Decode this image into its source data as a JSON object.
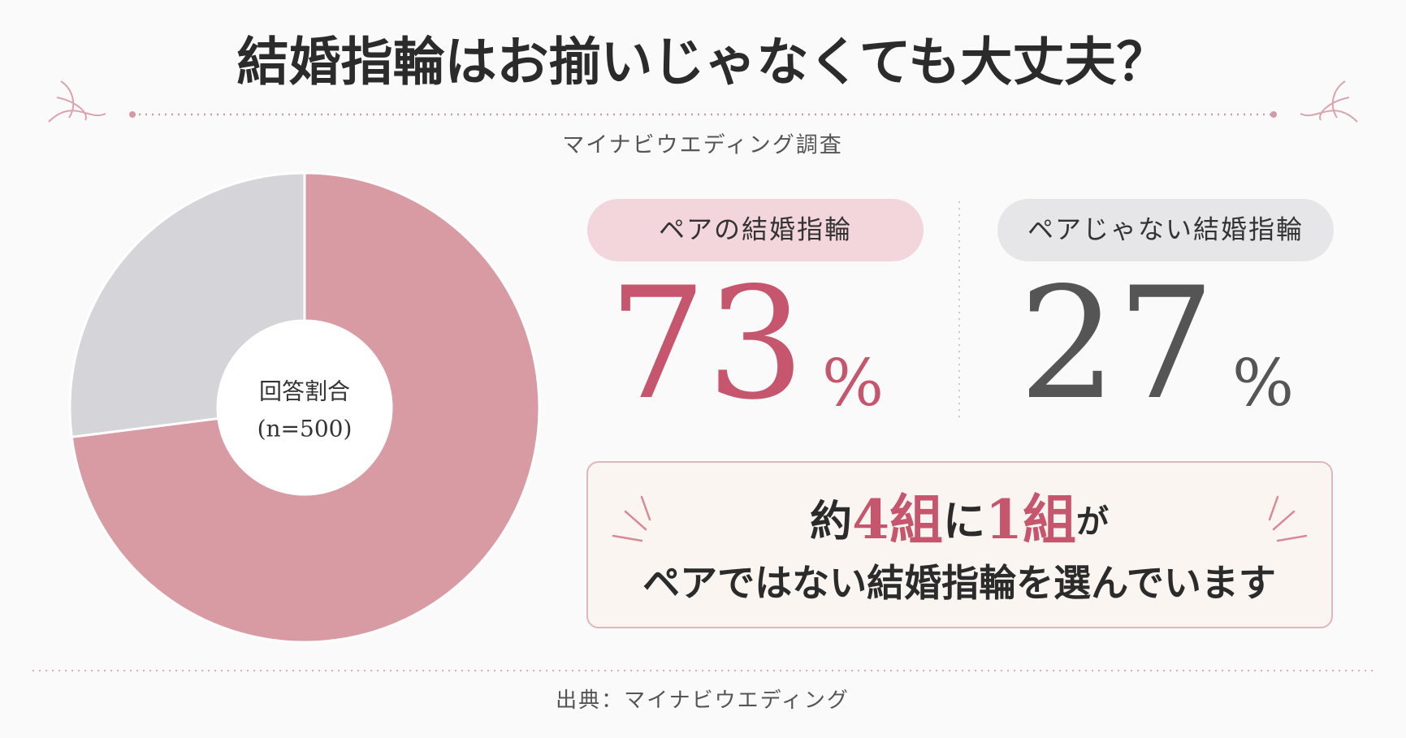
{
  "chart_data": {
    "type": "donut",
    "title": "結婚指輪はお揃いじゃなくても大丈夫？",
    "subtitle": "マイナビウエディング調査",
    "center_label": [
      "回答割合",
      "(n=500)"
    ],
    "categories": [
      "ペアの結婚指輪",
      "ペアじゃない結婚指輪"
    ],
    "values": [
      73,
      27
    ],
    "unit": "%",
    "colors": [
      "#d99ba3",
      "#d4d4d9"
    ],
    "label_colors": [
      "#c5566d",
      "#555555"
    ],
    "pill_colors": [
      "#f2d6db",
      "#e6e6e8"
    ],
    "callout": {
      "line1": [
        "約",
        "4組",
        "に",
        "1組",
        "が"
      ],
      "line2": "ペアではない結婚指輪を選んでいます"
    },
    "source": "出典：マイナビウエディング"
  }
}
